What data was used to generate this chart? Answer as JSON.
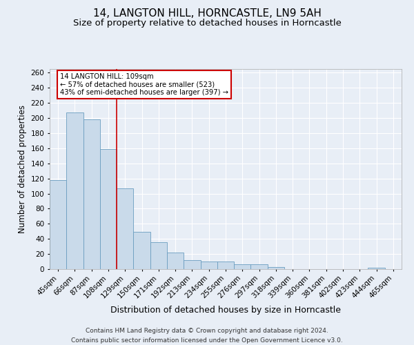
{
  "title": "14, LANGTON HILL, HORNCASTLE, LN9 5AH",
  "subtitle": "Size of property relative to detached houses in Horncastle",
  "xlabel": "Distribution of detached houses by size in Horncastle",
  "ylabel": "Number of detached properties",
  "categories": [
    "45sqm",
    "66sqm",
    "87sqm",
    "108sqm",
    "129sqm",
    "150sqm",
    "171sqm",
    "192sqm",
    "213sqm",
    "234sqm",
    "255sqm",
    "276sqm",
    "297sqm",
    "318sqm",
    "339sqm",
    "360sqm",
    "381sqm",
    "402sqm",
    "423sqm",
    "444sqm",
    "465sqm"
  ],
  "values": [
    118,
    207,
    198,
    159,
    107,
    49,
    36,
    22,
    12,
    10,
    10,
    6,
    6,
    3,
    0,
    0,
    0,
    0,
    0,
    2,
    0
  ],
  "bar_color": "#c9daea",
  "bar_edge_color": "#6a9dc0",
  "highlight_x": "108sqm",
  "highlight_line_color": "#cc0000",
  "annotation_text": "14 LANGTON HILL: 109sqm\n← 57% of detached houses are smaller (523)\n43% of semi-detached houses are larger (397) →",
  "annotation_box_color": "#ffffff",
  "annotation_box_edge": "#cc0000",
  "ylim": [
    0,
    265
  ],
  "yticks": [
    0,
    20,
    40,
    60,
    80,
    100,
    120,
    140,
    160,
    180,
    200,
    220,
    240,
    260
  ],
  "background_color": "#e8eef6",
  "plot_bg_color": "#e8eef6",
  "grid_color": "#ffffff",
  "footer_text": "Contains HM Land Registry data © Crown copyright and database right 2024.\nContains public sector information licensed under the Open Government Licence v3.0.",
  "title_fontsize": 11,
  "subtitle_fontsize": 9.5,
  "xlabel_fontsize": 9,
  "ylabel_fontsize": 8.5,
  "tick_fontsize": 7.5,
  "footer_fontsize": 6.5
}
